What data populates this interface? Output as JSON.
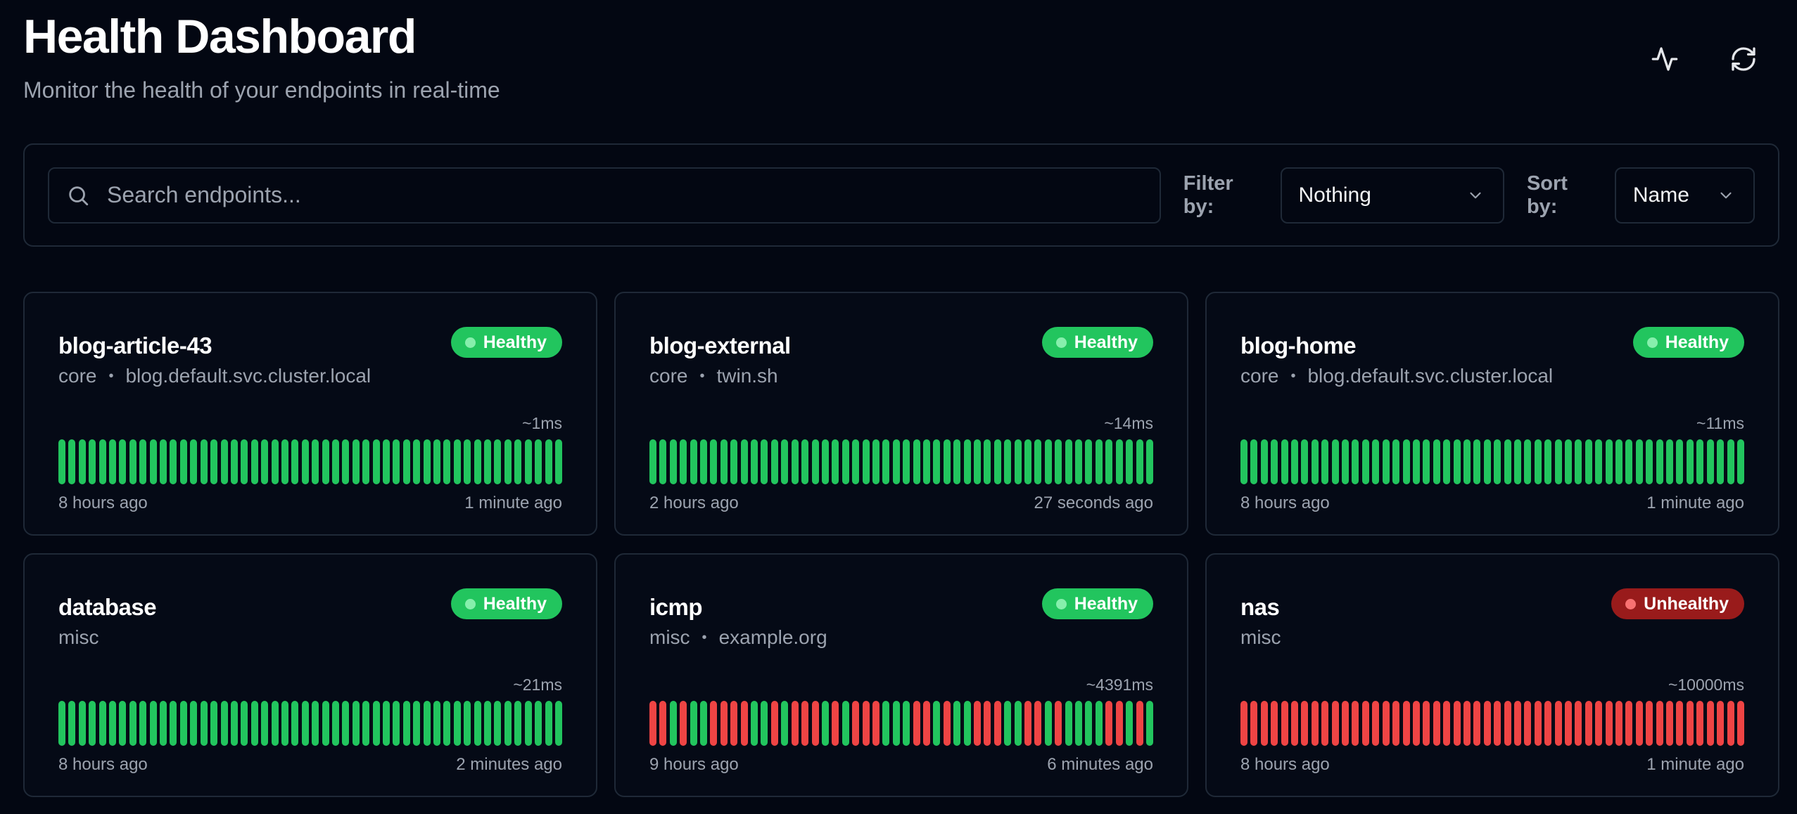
{
  "header": {
    "title": "Health Dashboard",
    "subtitle": "Monitor the health of your endpoints in real-time",
    "actions": [
      {
        "icon": "activity-icon"
      },
      {
        "icon": "refresh-icon"
      }
    ]
  },
  "toolbar": {
    "search_placeholder": "Search endpoints...",
    "search_value": "",
    "filter_label": "Filter by:",
    "filter_value": "Nothing",
    "sort_label": "Sort by:",
    "sort_value": "Name"
  },
  "colors": {
    "healthy": "#22c55e",
    "unhealthy": "#991b1b",
    "bar_ok": "#22c55e",
    "bar_fail": "#ef4444",
    "background": "#030712"
  },
  "endpoints": [
    {
      "name": "blog-article-43",
      "group": "core",
      "host": "blog.default.svc.cluster.local",
      "status": "Healthy",
      "response_time": "~1ms",
      "oldest": "8 hours ago",
      "newest": "1 minute ago",
      "results": "11111111111111111111111111111111111111111111111111"
    },
    {
      "name": "blog-external",
      "group": "core",
      "host": "twin.sh",
      "status": "Healthy",
      "response_time": "~14ms",
      "oldest": "2 hours ago",
      "newest": "27 seconds ago",
      "results": "11111111111111111111111111111111111111111111111111"
    },
    {
      "name": "blog-home",
      "group": "core",
      "host": "blog.default.svc.cluster.local",
      "status": "Healthy",
      "response_time": "~11ms",
      "oldest": "8 hours ago",
      "newest": "1 minute ago",
      "results": "11111111111111111111111111111111111111111111111111"
    },
    {
      "name": "database",
      "group": "misc",
      "host": "",
      "status": "Healthy",
      "response_time": "~21ms",
      "oldest": "8 hours ago",
      "newest": "2 minutes ago",
      "results": "11111111111111111111111111111111111111111111111111"
    },
    {
      "name": "icmp",
      "group": "misc",
      "host": "example.org",
      "status": "Healthy",
      "response_time": "~4391ms",
      "oldest": "9 hours ago",
      "newest": "6 minutes ago",
      "results": "00101100001101000101000111001011000110010111100101"
    },
    {
      "name": "nas",
      "group": "misc",
      "host": "",
      "status": "Unhealthy",
      "response_time": "~10000ms",
      "oldest": "8 hours ago",
      "newest": "1 minute ago",
      "results": "00000000000000000000000000000000000000000000000000"
    }
  ]
}
